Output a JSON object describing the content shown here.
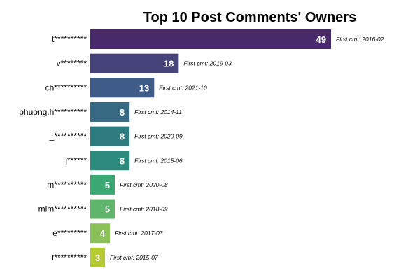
{
  "chart_data": {
    "type": "bar",
    "orientation": "horizontal",
    "title": "Top 10 Post Comments' Owners",
    "xlabel": "",
    "ylabel": "",
    "grid": false,
    "legend": "none",
    "xlim": [
      0,
      49
    ],
    "categories": [
      "t**********",
      "v********",
      "ch**********",
      "phuong.h**********",
      "_**********",
      "j******",
      "m**********",
      "mim**********",
      "e*********",
      "t**********"
    ],
    "values": [
      49,
      18,
      13,
      8,
      8,
      8,
      5,
      5,
      4,
      3
    ],
    "annotations": [
      "First cmt: 2016-02",
      "First cmt: 2019-03",
      "First cmt: 2021-10",
      "First cmt: 2014-11",
      "First cmt: 2020-09",
      "First cmt: 2015-06",
      "First cmt: 2020-08",
      "First cmt: 2018-09",
      "First cmt: 2017-03",
      "First cmt: 2015-07"
    ],
    "colors": [
      "#482a6a",
      "#47447c",
      "#3f5b87",
      "#376a82",
      "#2e7b80",
      "#2d8b7d",
      "#3ca873",
      "#5eb56b",
      "#8ac15a",
      "#b5c933"
    ]
  }
}
